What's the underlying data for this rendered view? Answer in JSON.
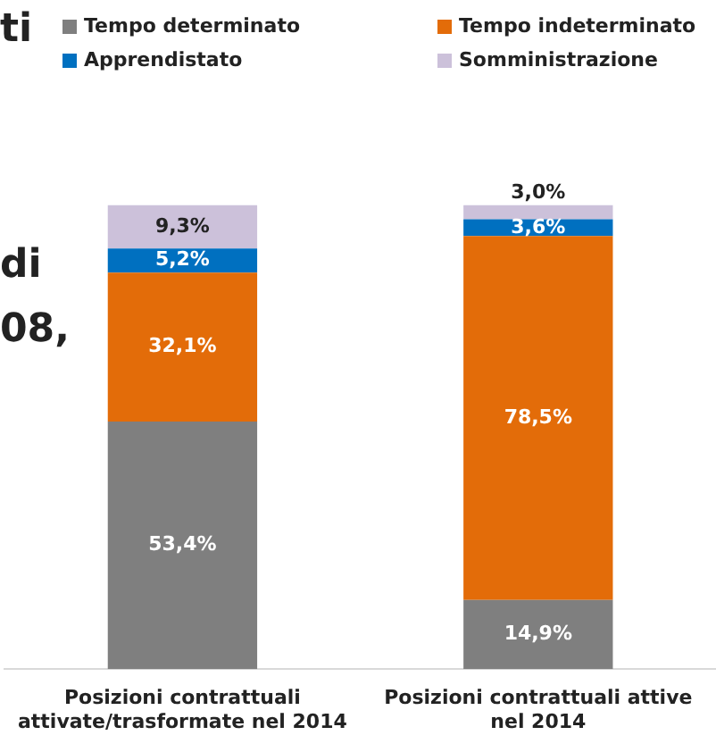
{
  "chart_data": {
    "type": "bar",
    "stacked": true,
    "legend": "top",
    "categories": [
      "Posizioni contrattuali attivate/trasformate nel 2014",
      "Posizioni contrattuali attive nel 2014"
    ],
    "series": [
      {
        "name": "Tempo determinato",
        "color": "#7f7f7f",
        "values": [
          53.4,
          14.9
        ],
        "value_labels": [
          "53,4%",
          "14,9%"
        ]
      },
      {
        "name": "Tempo indeterminato",
        "color": "#e36c09",
        "values": [
          32.1,
          78.5
        ],
        "value_labels": [
          "32,1%",
          "78,5%"
        ]
      },
      {
        "name": "Apprendistato",
        "color": "#0070c0",
        "values": [
          5.2,
          3.6
        ],
        "value_labels": [
          "5,2%",
          "3,6%"
        ]
      },
      {
        "name": "Somministrazione",
        "color": "#ccc1da",
        "values": [
          9.3,
          3.0
        ],
        "value_labels": [
          "9,3%",
          "3,0%"
        ]
      }
    ],
    "annotations": [
      "ti",
      "di",
      "08,"
    ]
  }
}
